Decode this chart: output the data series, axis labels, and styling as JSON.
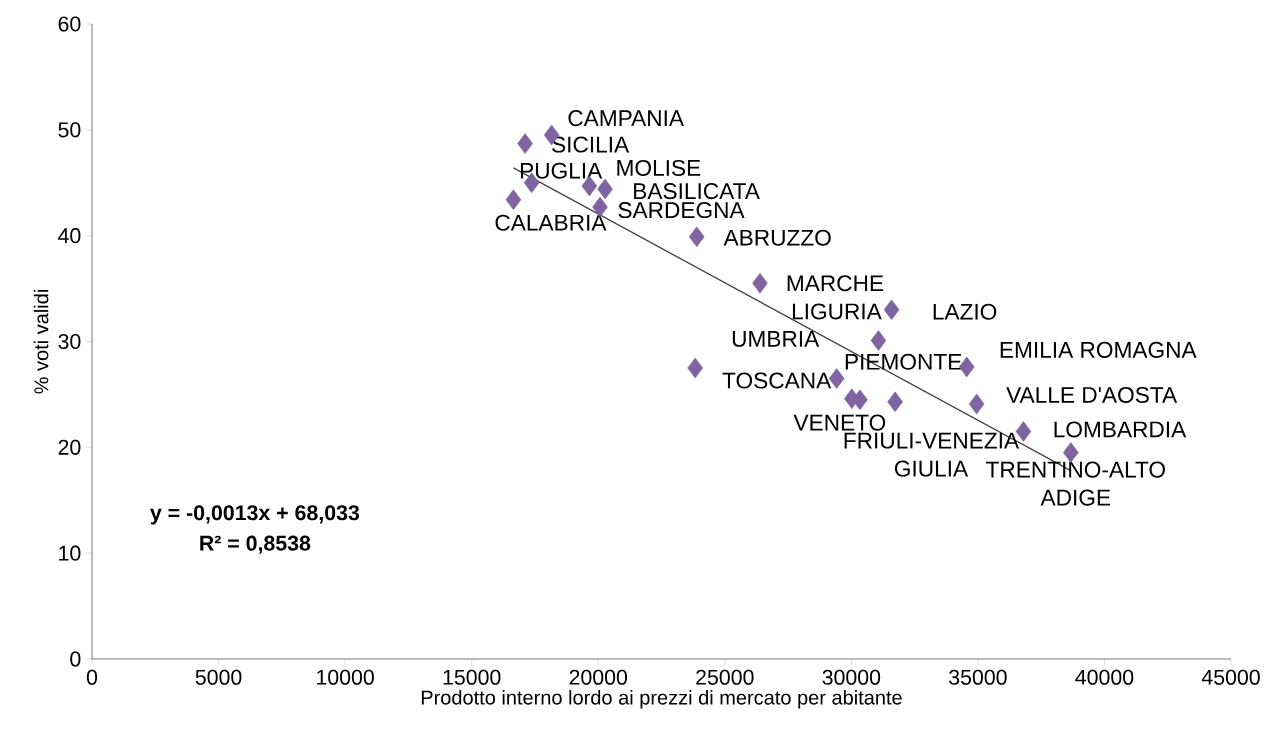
{
  "chart_data": {
    "type": "scatter",
    "xlabel": "Prodotto interno lordo ai prezzi di mercato per abitante",
    "ylabel": "% voti validi",
    "xlim": [
      0,
      45000
    ],
    "xticks": [
      0,
      5000,
      10000,
      15000,
      20000,
      25000,
      30000,
      35000,
      40000,
      45000
    ],
    "ylim": [
      0,
      60
    ],
    "yticks": [
      0,
      10,
      20,
      30,
      40,
      50,
      60
    ],
    "grid": false,
    "marker": "diamond",
    "series": [
      {
        "type": "scatter",
        "color": "#8064a2",
        "x": [
          18160,
          17110,
          17370,
          16650,
          19650,
          20270,
          20070,
          23890,
          26390,
          31070,
          31590,
          23830,
          29420,
          31730,
          30020,
          30340,
          34560,
          34950,
          36800,
          38670
        ],
        "values": [
          49.5,
          48.7,
          45.0,
          43.4,
          44.7,
          44.4,
          42.7,
          39.9,
          35.5,
          30.1,
          33.0,
          27.5,
          26.5,
          24.3,
          24.6,
          24.5,
          27.6,
          24.1,
          21.5,
          19.5
        ]
      },
      {
        "type": "line",
        "color": "#404040",
        "marker": "none",
        "x": [
          16650,
          38670
        ],
        "values": [
          46.4,
          17.8
        ]
      }
    ],
    "annotations": [
      {
        "text": "CAMPANIA",
        "x": 18160,
        "y": 49.5
      },
      {
        "text": "SICILIA",
        "x": 17110,
        "y": 48.7
      },
      {
        "text": "PUGLIA",
        "x": 17370,
        "y": 45.0
      },
      {
        "text": "CALABRIA",
        "x": 16650,
        "y": 43.4
      },
      {
        "text": "MOLISE",
        "x": 19650,
        "y": 44.7
      },
      {
        "text": "BASILICATA",
        "x": 20270,
        "y": 44.4
      },
      {
        "text": "SARDEGNA",
        "x": 20070,
        "y": 42.7
      },
      {
        "text": "ABRUZZO",
        "x": 23890,
        "y": 39.9
      },
      {
        "text": "MARCHE",
        "x": 26390,
        "y": 35.5
      },
      {
        "text": "LIGURIA",
        "x": 31070,
        "y": 30.1
      },
      {
        "text": "LAZIO",
        "x": 31590,
        "y": 33.0
      },
      {
        "text": "UMBRIA",
        "x": 23830,
        "y": 27.5
      },
      {
        "text": "TOSCANA",
        "x": 29420,
        "y": 26.5
      },
      {
        "text": "PIEMONTE",
        "x": 31730,
        "y": 24.3
      },
      {
        "text": "VENETO",
        "x": 30020,
        "y": 24.6
      },
      {
        "text": "FRIULI-VENEZIA GIULIA",
        "x": 30340,
        "y": 24.5
      },
      {
        "text": "EMILIA ROMAGNA",
        "x": 34560,
        "y": 27.6
      },
      {
        "text": "VALLE D'AOSTA",
        "x": 34950,
        "y": 24.1
      },
      {
        "text": "LOMBARDIA",
        "x": 36800,
        "y": 21.5
      },
      {
        "text": "TRENTINO-ALTO ADIGE",
        "x": 38670,
        "y": 19.5
      },
      "y = -0,0013x + 68,033",
      "R² = 0,8538"
    ]
  }
}
